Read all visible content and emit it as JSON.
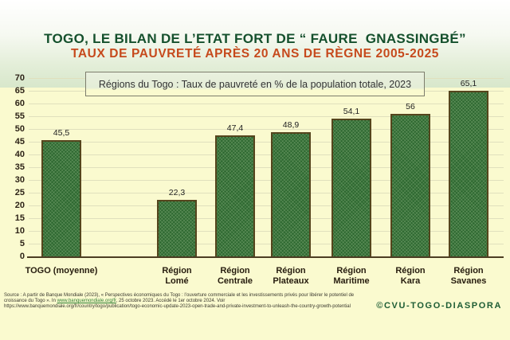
{
  "header": {
    "title": "TOGO, LE BILAN DE L’ETAT FORT DE “ FAURE  GNASSINGBÉ”",
    "subtitle": "TAUX DE PAUVRETÉ APRÈS 20 ANS DE RÈGNE 2005-2025",
    "title_color": "#14502c",
    "subtitle_color": "#c6491c"
  },
  "chart_data": {
    "type": "bar",
    "title": "Régions du Togo : Taux de pauvreté en % de la population totale, 2023",
    "categories": [
      "TOGO (moyenne)",
      "Région\nLomé",
      "Région\nCentrale",
      "Région\nPlateaux",
      "Région\nMaritime",
      "Région\nKara",
      "Région\nSavanes"
    ],
    "values": [
      45.5,
      22.3,
      47.4,
      48.9,
      54.1,
      56,
      65.1
    ],
    "value_labels": [
      "45,5",
      "22,3",
      "47,4",
      "48,9",
      "54,1",
      "56",
      "65,1"
    ],
    "xlabel": "",
    "ylabel": "",
    "ylim": [
      0,
      70
    ],
    "ytick_step": 5,
    "yticks": [
      0,
      5,
      10,
      15,
      20,
      25,
      30,
      35,
      40,
      45,
      50,
      55,
      60,
      65,
      70
    ],
    "grid": true,
    "legend": null,
    "bar_color": "#2d6830",
    "bar_border_color": "#55451d",
    "plot_bg": "#fafacf"
  },
  "footer": {
    "source_line1": "Source : A partir de Banque Mondiale (2023), « Perspectives économiques du Togo : l’ouverture commerciale et les investissements privés pour libérer le potentiel de",
    "source_line2_prefix": "croissance du Togo ». In ",
    "source_link": "www.banquemondiale.org/fr",
    "source_line2_suffix": ", 25 octobre 2023. Accédé le 1er octobre 2024. Voir",
    "source_line3": "https://www.banquemondiale.org/fr/country/togo/publication/togo-economic-update-2023-open-trade-and-private-investment-to-unleash-the-country-growth-potential",
    "copyright": "©CVU-TOGO-DIASPORA"
  }
}
